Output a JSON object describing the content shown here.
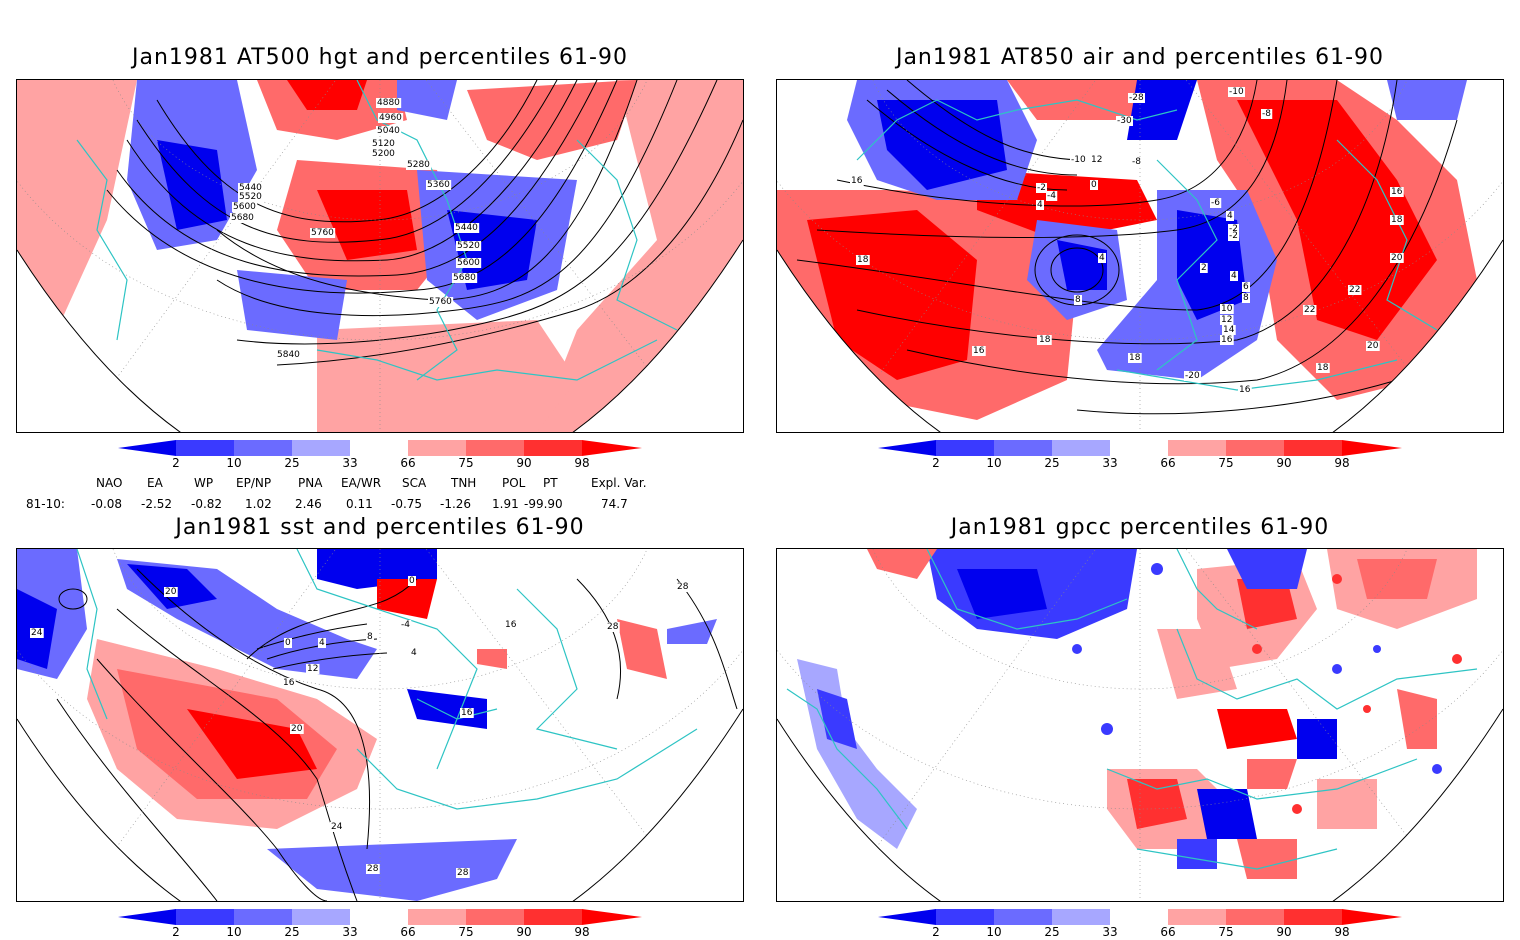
{
  "panels": [
    {
      "title": "Jan1981 AT500 hgt and percentiles 61-90",
      "contour_labels": [
        "4880",
        "4960",
        "5040",
        "5120",
        "5200",
        "5280",
        "5360",
        "5440",
        "5520",
        "5600",
        "5680",
        "5760",
        "5840",
        "5440",
        "5520",
        "5600",
        "5680",
        "5760"
      ]
    },
    {
      "title": "Jan1981 AT850 air and percentiles 61-90",
      "contour_labels": [
        "-28",
        "-30",
        "-10",
        "-8",
        "-10",
        "12",
        "-8",
        "0",
        "-2",
        "4",
        "-6",
        "-2",
        "4",
        "2",
        "4",
        "6",
        "8",
        "10",
        "12",
        "14",
        "16",
        "16",
        "16",
        "18",
        "18",
        "20",
        "22",
        "22",
        "20",
        "18",
        "18",
        "-20",
        "16",
        "16",
        "18",
        "16",
        "4",
        "8",
        "-2",
        "-4"
      ]
    },
    {
      "title": "Jan1981 sst and percentiles 61-90",
      "contour_labels": [
        "20",
        "24",
        "28",
        "0",
        "4",
        "8",
        "12",
        "16",
        "20",
        "24",
        "28",
        "28",
        "-4",
        "4",
        "16",
        "16",
        "0",
        "28"
      ]
    },
    {
      "title": "Jan1981 gpcc percentiles 61-90",
      "contour_labels": []
    }
  ],
  "colorbar": {
    "labels": [
      "2",
      "10",
      "25",
      "33",
      "66",
      "75",
      "90",
      "98"
    ],
    "colors": [
      "#0000ee",
      "#3a3aff",
      "#6b6bff",
      "#a7a7ff",
      "#ffffff",
      "#ffa3a3",
      "#ff6a6a",
      "#ff3030",
      "#ff0000"
    ]
  },
  "indices": {
    "headers": [
      "NAO",
      "EA",
      "WP",
      "EP/NP",
      "PNA",
      "EA/WR",
      "SCA",
      "TNH",
      "POL",
      "PT",
      "Expl. Var."
    ],
    "row_label": "81-10:",
    "values": [
      "-0.08",
      "-2.52",
      "-0.82",
      "1.02",
      "2.46",
      "0.11",
      "-0.75",
      "-1.26",
      "1.91",
      "-99.90",
      "74.7"
    ]
  },
  "colors": {
    "coast": "#2ec4c4",
    "contour": "#000000",
    "grid": "#8a8a8a"
  }
}
